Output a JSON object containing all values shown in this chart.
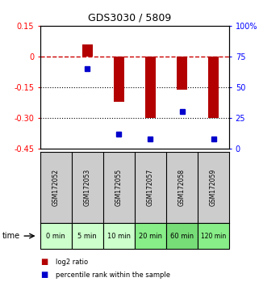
{
  "title": "GDS3030 / 5809",
  "categories": [
    "GSM172052",
    "GSM172053",
    "GSM172055",
    "GSM172057",
    "GSM172058",
    "GSM172059"
  ],
  "time_labels": [
    "0 min",
    "5 min",
    "10 min",
    "20 min",
    "60 min",
    "120 min"
  ],
  "log2_ratios": [
    0.0,
    0.06,
    -0.22,
    -0.3,
    -0.16,
    -0.3
  ],
  "percentile_ranks": [
    null,
    65,
    12,
    8,
    30,
    8
  ],
  "ylim_left": [
    -0.45,
    0.15
  ],
  "ylim_right": [
    0,
    100
  ],
  "yticks_left": [
    0.15,
    0.0,
    -0.15,
    -0.3,
    -0.45
  ],
  "yticks_right": [
    100,
    75,
    50,
    25,
    0
  ],
  "ytick_labels_left": [
    "0.15",
    "0",
    "-0.15",
    "-0.30",
    "-0.45"
  ],
  "ytick_labels_right": [
    "100%",
    "75",
    "50",
    "25",
    "0"
  ],
  "bar_color": "#b30000",
  "dot_color": "#0000cc",
  "dashed_line_color": "#cc0000",
  "grid_color": "#000000",
  "bg_color": "#ffffff",
  "plot_bg": "#ffffff",
  "time_bg_colors": [
    "#ccffcc",
    "#ccffcc",
    "#ccffcc",
    "#88ee88",
    "#77dd77",
    "#88ee88"
  ],
  "gsm_bg_color": "#cccccc",
  "bar_width": 0.35,
  "legend_red_label": "log2 ratio",
  "legend_blue_label": "percentile rank within the sample"
}
